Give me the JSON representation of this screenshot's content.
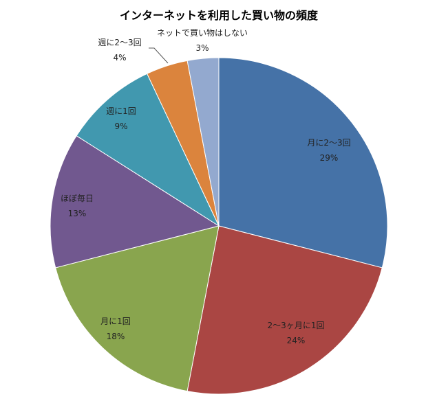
{
  "chart_data": {
    "type": "pie",
    "title": "インターネットを利用した買い物の頻度",
    "categories": [
      "月に2～3回",
      "2～3ヶ月に1回",
      "月に1回",
      "ほぼ毎日",
      "週に1回",
      "週に2～3回",
      "ネットで買い物はしない"
    ],
    "values": [
      29,
      24,
      18,
      13,
      9,
      4,
      3
    ],
    "value_labels": [
      "29%",
      "24%",
      "18%",
      "13%",
      "9%",
      "4%",
      "3%"
    ],
    "unit": "%",
    "colors": [
      "#4572A7",
      "#AA4643",
      "#89A54E",
      "#71588F",
      "#4198AF",
      "#DB843D",
      "#93A9CF"
    ],
    "start_angle": "12 o'clock",
    "direction": "clockwise",
    "legend": "none (data labels on slices)"
  }
}
